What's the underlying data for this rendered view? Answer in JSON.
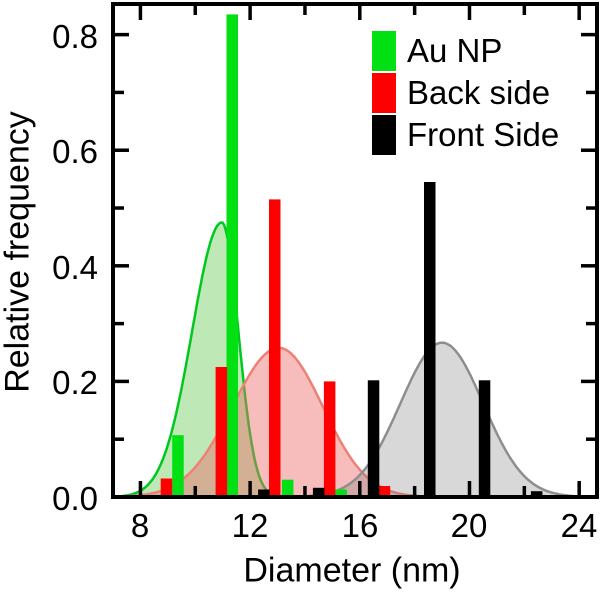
{
  "legend": {
    "items": [
      {
        "label": "Au NP",
        "color": "#00e013"
      },
      {
        "label": "Back side",
        "color": "#fe0000"
      },
      {
        "label": "Front Side",
        "color": "#000000"
      }
    ]
  },
  "chart_data": {
    "type": "bar",
    "title": "",
    "xlabel": "Diameter (nm)",
    "ylabel": "Relative frequency",
    "xlim": [
      7,
      24.65
    ],
    "ylim": [
      0,
      0.853
    ],
    "grid": false,
    "legend_position": "top-right-inside",
    "bar_width_nm": 0.42,
    "x_ticks": [
      {
        "value": 8,
        "label": "8"
      },
      {
        "value": 12,
        "label": "12"
      },
      {
        "value": 16,
        "label": "16"
      },
      {
        "value": 20,
        "label": "20"
      },
      {
        "value": 24,
        "label": "24"
      }
    ],
    "x_minor_ticks": [
      10,
      14,
      18,
      22
    ],
    "y_ticks": [
      {
        "value": 0.0,
        "label": "0.0"
      },
      {
        "value": 0.2,
        "label": "0.2"
      },
      {
        "value": 0.4,
        "label": "0.4"
      },
      {
        "value": 0.6,
        "label": "0.6"
      },
      {
        "value": 0.8,
        "label": "0.8"
      }
    ],
    "y_minor_ticks": [
      0.1,
      0.3,
      0.5,
      0.7
    ],
    "series": [
      {
        "name": "Au NP",
        "color": "#00e013",
        "points": [
          [
            9.37,
            0.107
          ],
          [
            11.35,
            0.835
          ],
          [
            13.37,
            0.03
          ],
          [
            15.32,
            0.013
          ]
        ]
      },
      {
        "name": "Back side",
        "color": "#fe0000",
        "points": [
          [
            8.95,
            0.032
          ],
          [
            10.95,
            0.225
          ],
          [
            12.9,
            0.515
          ],
          [
            14.9,
            0.2
          ],
          [
            16.9,
            0.019
          ]
        ]
      },
      {
        "name": "Front Side",
        "color": "#000000",
        "points": [
          [
            12.5,
            0.013
          ],
          [
            14.5,
            0.016
          ],
          [
            16.5,
            0.202
          ],
          [
            18.55,
            0.545
          ],
          [
            20.55,
            0.202
          ],
          [
            22.45,
            0.01
          ]
        ]
      }
    ],
    "fit_curves": [
      {
        "name": "Au NP fit",
        "center": 10.97,
        "peak": 0.475,
        "sigma_left": 1.08,
        "sigma_right": 0.6,
        "line_color": "#00c81e",
        "fill_color": "rgba(110,205,90,0.45)"
      },
      {
        "name": "Back side fit",
        "center": 13.05,
        "peak": 0.258,
        "sigma_left": 1.7,
        "sigma_right": 1.6,
        "line_color": "#ee8176",
        "fill_color": "rgba(237,106,106,0.45)"
      },
      {
        "name": "Front Side fit",
        "center": 19.0,
        "peak": 0.267,
        "sigma_left": 1.52,
        "sigma_right": 1.5,
        "line_color": "#8e8e8e",
        "fill_color": "rgba(125,125,125,0.30)"
      }
    ]
  }
}
